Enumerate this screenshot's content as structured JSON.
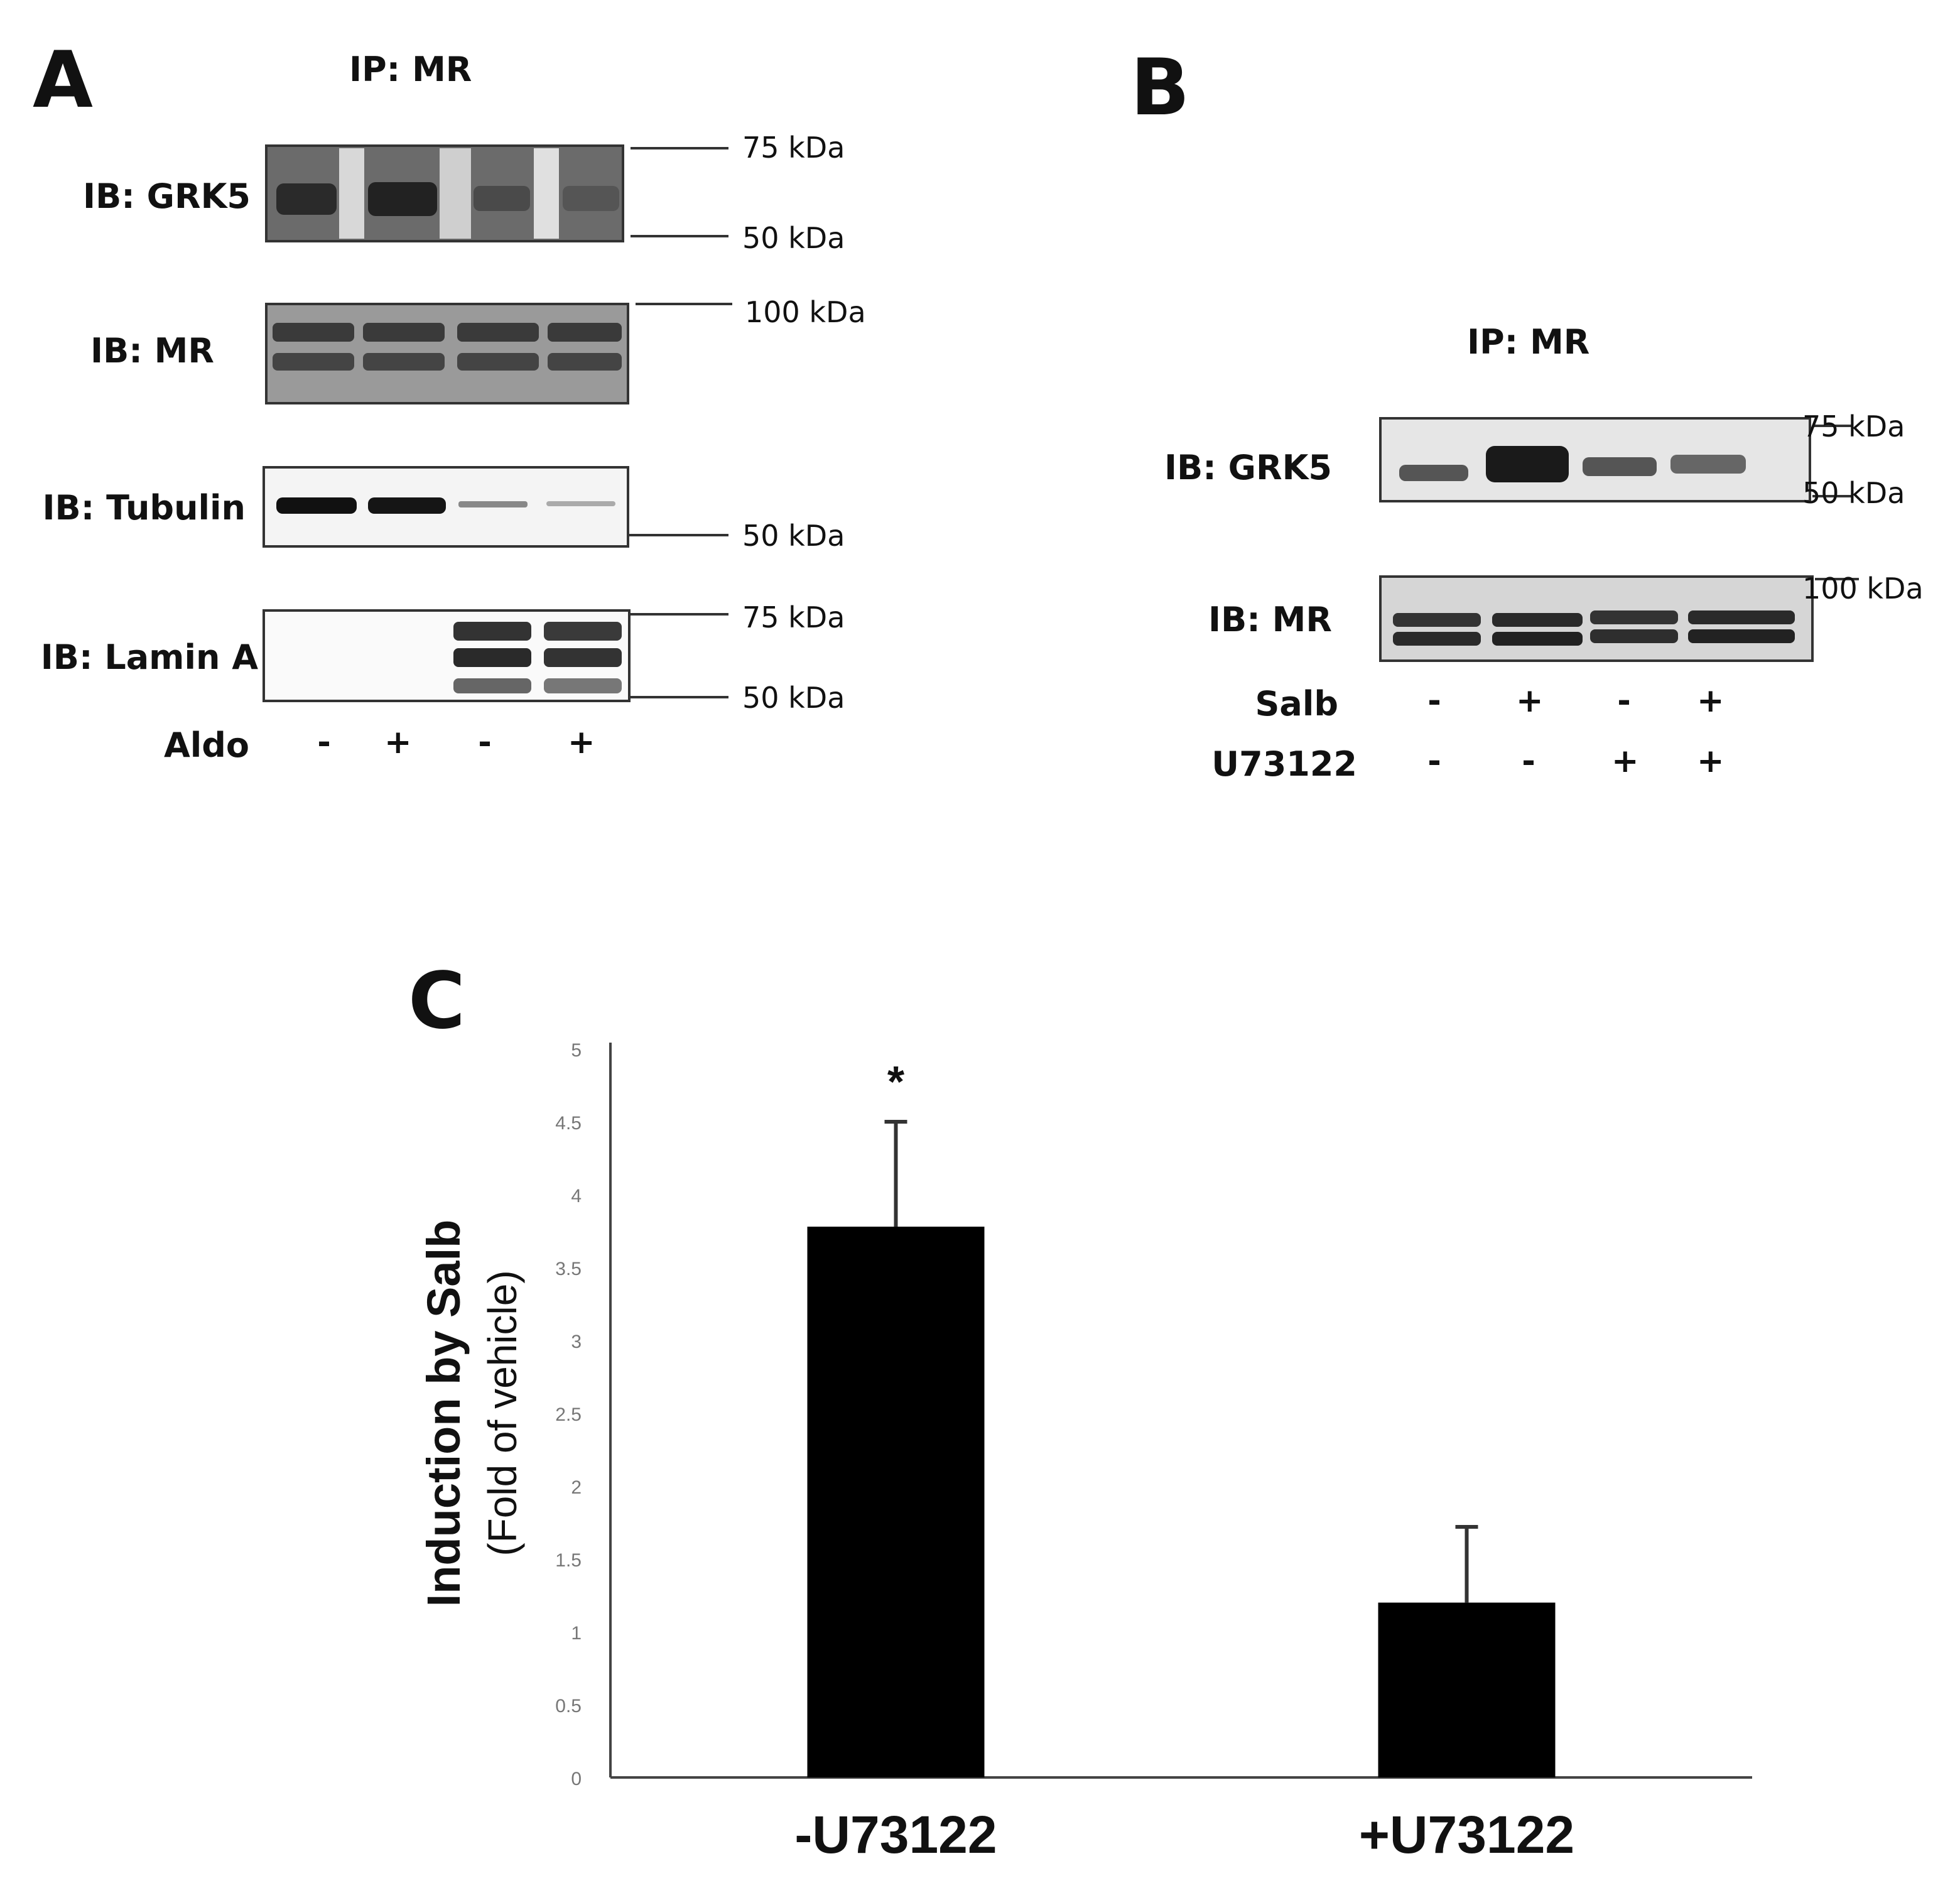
{
  "panel_a": {
    "letter": "A",
    "ip_label": "IP: MR",
    "blots": [
      {
        "label": "IB: GRK5",
        "markers": [
          "75 kDa",
          "50 kDa"
        ]
      },
      {
        "label": "IB: MR",
        "markers": [
          "100 kDa"
        ]
      },
      {
        "label": "IB: Tubulin",
        "markers": [
          "50 kDa"
        ]
      },
      {
        "label": "IB: Lamin A",
        "markers": [
          "75 kDa",
          "50 kDa"
        ]
      }
    ],
    "treatment": {
      "label": "Aldo",
      "lanes": [
        "-",
        "+",
        "-",
        "+"
      ]
    }
  },
  "panel_b": {
    "letter": "B",
    "ip_label": "IP: MR",
    "blots": [
      {
        "label": "IB: GRK5",
        "markers": [
          "75 kDa",
          "50 kDa"
        ]
      },
      {
        "label": "IB: MR",
        "markers": [
          "100 kDa"
        ]
      }
    ],
    "treatments": [
      {
        "label": "Salb",
        "lanes": [
          "-",
          "+",
          "-",
          "+"
        ]
      },
      {
        "label": "U73122",
        "lanes": [
          "-",
          "-",
          "+",
          "+"
        ]
      }
    ]
  },
  "panel_c": {
    "letter": "C",
    "significance_mark": "*"
  },
  "colors": {
    "bar": "#000000",
    "axis": "#444444",
    "tick_text": "#777777"
  },
  "chart_data": {
    "type": "bar",
    "categories": [
      "-U73122",
      "+U73122"
    ],
    "values": [
      3.78,
      1.2
    ],
    "error": [
      0.72,
      0.52
    ],
    "ylabel": "Induction by Salb",
    "ylabel_sub": "(Fold of vehicle)",
    "ylim": [
      0,
      5
    ],
    "yticks": [
      "0",
      "0.5",
      "1",
      "1.5",
      "2",
      "2.5",
      "3",
      "3.5",
      "4",
      "4.5",
      "5"
    ],
    "annotations": [
      {
        "category": "-U73122",
        "text": "*"
      }
    ],
    "grid": false,
    "legend": "none"
  }
}
